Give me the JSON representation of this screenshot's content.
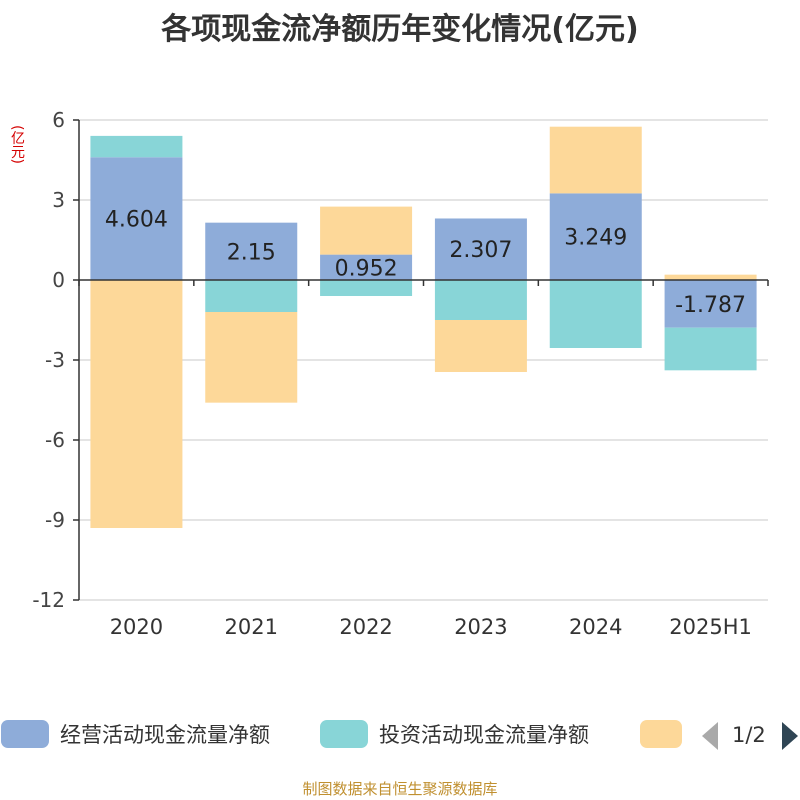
{
  "title": "各项现金流净额历年变化情况(亿元)",
  "unit_label": "(亿元)",
  "source": "制图数据来自恒生聚源数据库",
  "legend": {
    "page": "1/2",
    "prev_icon": "triangle-left-icon",
    "next_icon": "triangle-right-icon"
  },
  "chart_data": {
    "type": "bar",
    "stacked": true,
    "categories": [
      "2020",
      "2021",
      "2022",
      "2023",
      "2024",
      "2025H1"
    ],
    "ylim": [
      -12,
      6
    ],
    "yticks": [
      6,
      3,
      0,
      -3,
      -6,
      -9,
      -12
    ],
    "grid": true,
    "legend_position": "bottom",
    "series": [
      {
        "name": "经营活动现金流量净额",
        "color": "#8eacd9",
        "values": [
          4.604,
          2.15,
          0.952,
          2.307,
          3.249,
          -1.787
        ],
        "labels": true
      },
      {
        "name": "投资活动现金流量净额",
        "color": "#88d5d7",
        "values": [
          0.8,
          -1.2,
          -0.6,
          -1.5,
          -2.55,
          -1.6
        ],
        "labels": false
      },
      {
        "name": "",
        "color": "#fdd899",
        "values": [
          -9.3,
          -3.4,
          1.8,
          -1.95,
          2.5,
          0.2
        ],
        "labels": false
      }
    ],
    "data_labels": [
      "4.604",
      "2.15",
      "0.952",
      "2.307",
      "3.249",
      "-1.787"
    ]
  }
}
